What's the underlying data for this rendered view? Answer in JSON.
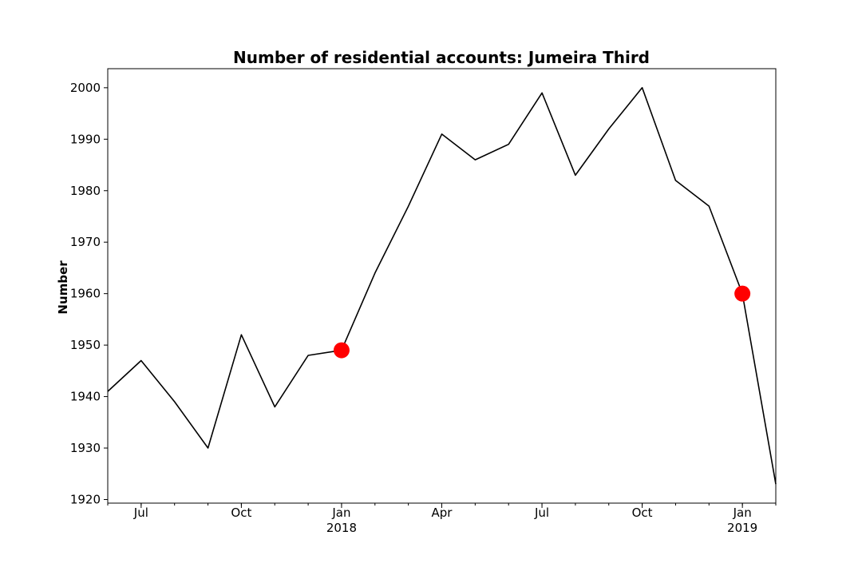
{
  "chart_data": {
    "type": "line",
    "title": "Number of residential accounts: Jumeira Third",
    "xlabel": "",
    "ylabel": "Number",
    "ylim": [
      1919.3,
      2003.7
    ],
    "xlim": [
      "2017-06",
      "2019-02"
    ],
    "grid": false,
    "legend": "none",
    "line_color": "#000000",
    "marker_color": "#ff0000",
    "x": [
      "2017-06",
      "2017-07",
      "2017-08",
      "2017-09",
      "2017-10",
      "2017-11",
      "2017-12",
      "2018-01",
      "2018-02",
      "2018-03",
      "2018-04",
      "2018-05",
      "2018-06",
      "2018-07",
      "2018-08",
      "2018-09",
      "2018-10",
      "2018-11",
      "2018-12",
      "2019-01",
      "2019-02"
    ],
    "values": [
      1941,
      1947,
      1939,
      1930,
      1952,
      1938,
      1948,
      1949,
      1964,
      1977,
      1991,
      1986,
      1989,
      1999,
      1983,
      1992,
      2000,
      1982,
      1977,
      1960,
      1923
    ],
    "highlighted_points": [
      {
        "x": "2018-01",
        "y": 1949
      },
      {
        "x": "2019-01",
        "y": 1960
      }
    ],
    "y_ticks": [
      1920,
      1930,
      1940,
      1950,
      1960,
      1970,
      1980,
      1990,
      2000
    ],
    "x_ticks": [
      {
        "x": "2017-07",
        "label": "Jul",
        "sublabel": ""
      },
      {
        "x": "2017-10",
        "label": "Oct",
        "sublabel": ""
      },
      {
        "x": "2018-01",
        "label": "Jan",
        "sublabel": "2018"
      },
      {
        "x": "2018-04",
        "label": "Apr",
        "sublabel": ""
      },
      {
        "x": "2018-07",
        "label": "Jul",
        "sublabel": ""
      },
      {
        "x": "2018-10",
        "label": "Oct",
        "sublabel": ""
      },
      {
        "x": "2019-01",
        "label": "Jan",
        "sublabel": "2019"
      }
    ]
  }
}
